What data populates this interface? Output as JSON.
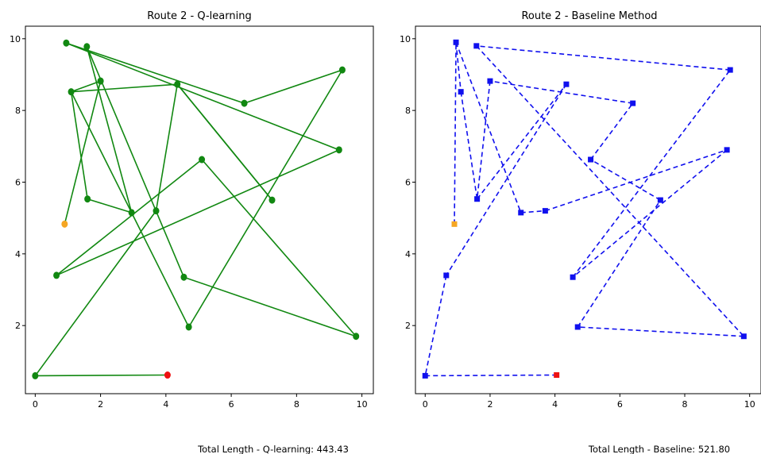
{
  "chart_data": [
    {
      "type": "line",
      "title": "Route 2 - Q-learning",
      "caption": "Total Length - Q-learning: 443.43",
      "xticks": [
        "0",
        "2",
        "4",
        "6",
        "8",
        "10"
      ],
      "yticks": [
        "2",
        "4",
        "6",
        "8",
        "10"
      ],
      "xlim": [
        -0.3,
        10.35
      ],
      "ylim": [
        0.1,
        10.35
      ],
      "line_color": "#118811",
      "line_style": "solid",
      "marker": "circle",
      "start_color": "#f5a623",
      "end_color": "#ee1111",
      "route": [
        [
          0.9,
          4.83
        ],
        [
          2.0,
          8.82
        ],
        [
          1.1,
          8.52
        ],
        [
          1.6,
          5.53
        ],
        [
          2.95,
          5.15
        ],
        [
          1.58,
          9.78
        ],
        [
          4.55,
          3.35
        ],
        [
          9.82,
          1.7
        ],
        [
          5.1,
          6.63
        ],
        [
          0.65,
          3.4
        ],
        [
          9.3,
          6.9
        ],
        [
          0.95,
          9.88
        ],
        [
          6.4,
          8.2
        ],
        [
          9.4,
          9.13
        ],
        [
          4.7,
          1.96
        ],
        [
          1.1,
          8.52
        ],
        [
          4.35,
          8.73
        ],
        [
          7.25,
          5.5
        ],
        [
          4.35,
          8.73
        ],
        [
          3.7,
          5.2
        ],
        [
          0.0,
          0.6
        ],
        [
          4.05,
          0.62
        ]
      ]
    },
    {
      "type": "line",
      "title": "Route 2 - Baseline Method",
      "caption": "Total Length - Baseline: 521.80",
      "xticks": [
        "0",
        "2",
        "4",
        "6",
        "8",
        "10"
      ],
      "yticks": [
        "2",
        "4",
        "6",
        "8",
        "10"
      ],
      "xlim": [
        -0.3,
        10.35
      ],
      "ylim": [
        0.1,
        10.35
      ],
      "line_color": "#1010ee",
      "line_style": "dashed",
      "marker": "square",
      "start_color": "#f5a623",
      "end_color": "#ee1111",
      "route": [
        [
          0.9,
          4.83
        ],
        [
          0.95,
          9.9
        ],
        [
          1.1,
          8.52
        ],
        [
          1.6,
          5.53
        ],
        [
          4.35,
          8.73
        ],
        [
          0.65,
          3.4
        ],
        [
          0.0,
          0.6
        ],
        [
          4.05,
          0.62
        ]
      ],
      "extra_segments": [
        [
          [
            0.95,
            9.9
          ],
          [
            2.95,
            5.15
          ]
        ],
        [
          [
            2.95,
            5.15
          ],
          [
            3.7,
            5.2
          ]
        ],
        [
          [
            3.7,
            5.2
          ],
          [
            9.3,
            6.9
          ]
        ],
        [
          [
            9.3,
            6.9
          ],
          [
            4.55,
            3.35
          ]
        ],
        [
          [
            4.55,
            3.35
          ],
          [
            9.4,
            9.13
          ]
        ],
        [
          [
            9.4,
            9.13
          ],
          [
            1.58,
            9.8
          ]
        ],
        [
          [
            1.58,
            9.8
          ],
          [
            9.82,
            1.7
          ]
        ],
        [
          [
            9.82,
            1.7
          ],
          [
            4.7,
            1.96
          ]
        ],
        [
          [
            4.7,
            1.96
          ],
          [
            7.25,
            5.5
          ]
        ],
        [
          [
            7.25,
            5.5
          ],
          [
            5.1,
            6.63
          ]
        ],
        [
          [
            5.1,
            6.63
          ],
          [
            6.4,
            8.2
          ]
        ],
        [
          [
            6.4,
            8.2
          ],
          [
            2.0,
            8.82
          ]
        ],
        [
          [
            2.0,
            8.82
          ],
          [
            1.6,
            5.53
          ]
        ]
      ]
    }
  ]
}
